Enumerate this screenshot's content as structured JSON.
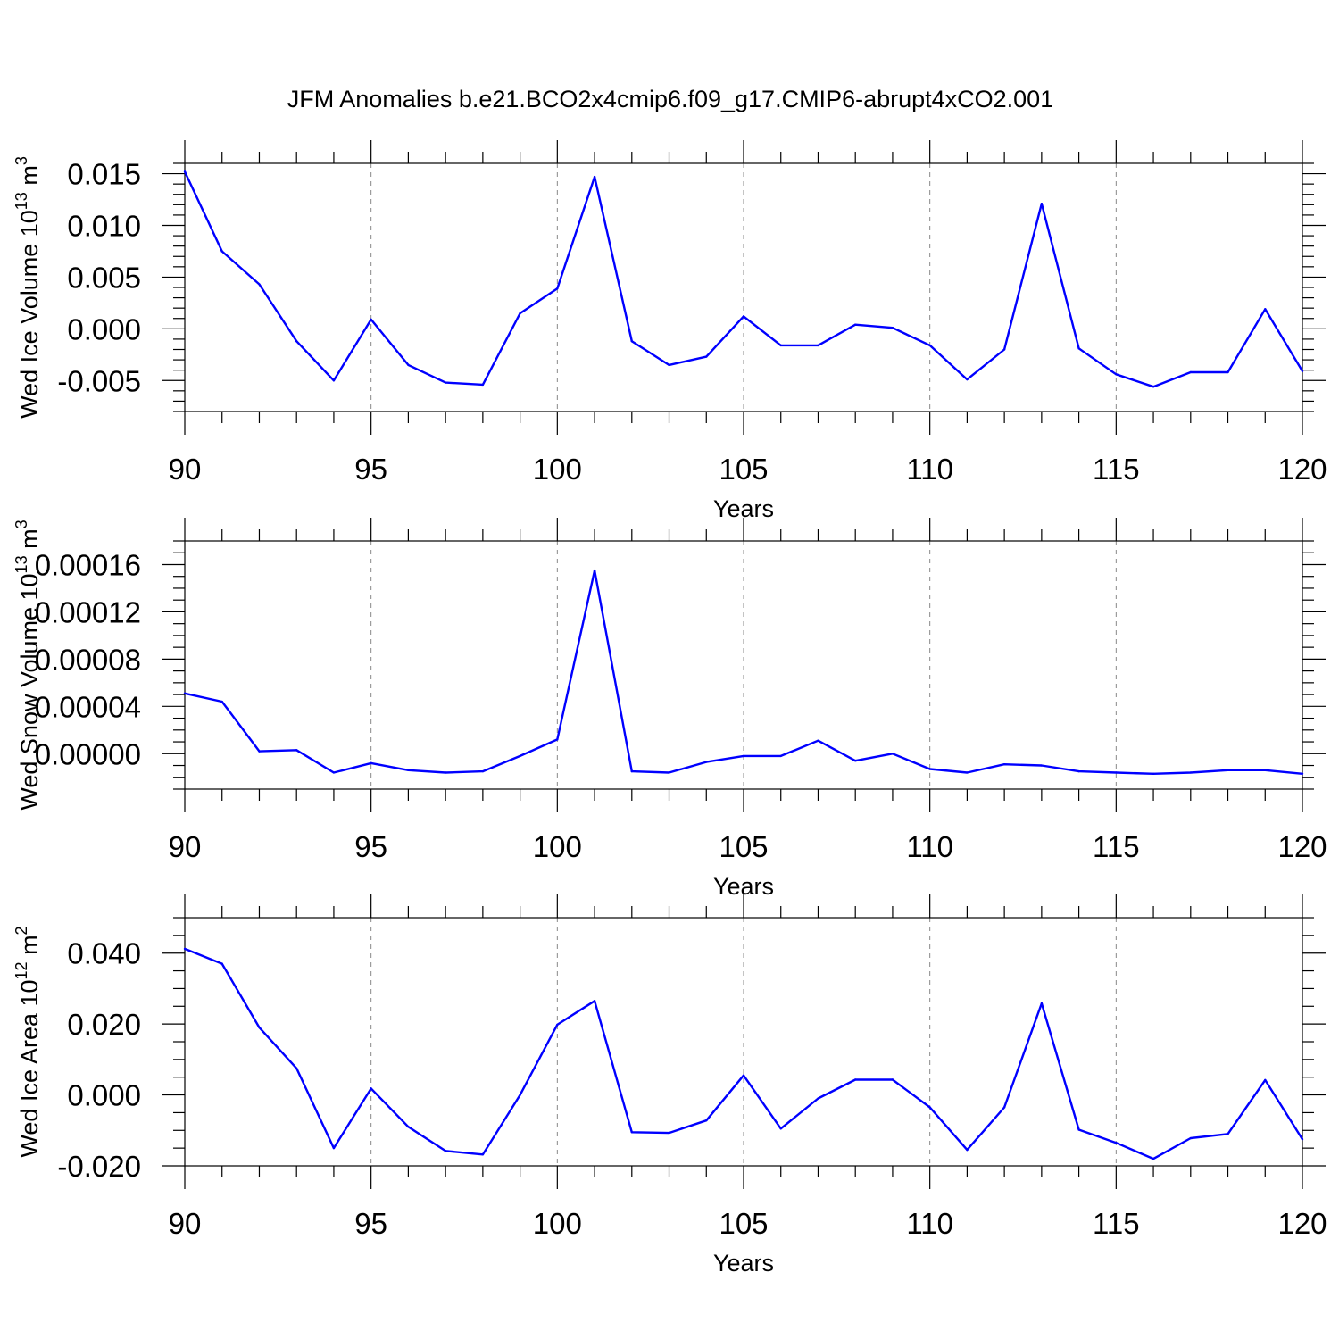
{
  "title": "JFM Anomalies b.e21.BCO2x4cmip6.f09_g17.CMIP6-abrupt4xCO2.001",
  "line_color": "#0000ff",
  "chart_data": [
    {
      "type": "line",
      "ylabel": "Wed Ice Volume 10",
      "ylabel_exp": "13",
      "ylabel_unit": " m",
      "ylabel_unit_exp": "3",
      "xlabel": "Years",
      "xlim": [
        90,
        120
      ],
      "ylim": [
        -0.008,
        0.016
      ],
      "x_ticks": [
        90,
        95,
        100,
        105,
        110,
        115,
        120
      ],
      "x_tick_labels": [
        "90",
        "95",
        "100",
        "105",
        "110",
        "115",
        "120"
      ],
      "y_ticks": [
        -0.005,
        0.0,
        0.005,
        0.01,
        0.015
      ],
      "y_tick_labels": [
        "-0.005",
        "0.000",
        "0.005",
        "0.010",
        "0.015"
      ],
      "y_minor_step": 0.001,
      "x": [
        90,
        91,
        92,
        93,
        94,
        95,
        96,
        97,
        98,
        99,
        100,
        101,
        102,
        103,
        104,
        105,
        106,
        107,
        108,
        109,
        110,
        111,
        112,
        113,
        114,
        115,
        116,
        117,
        118,
        119,
        120
      ],
      "values": [
        0.0152,
        0.0075,
        0.0043,
        -0.0012,
        -0.005,
        0.0009,
        -0.0035,
        -0.0052,
        -0.0054,
        0.0015,
        0.0039,
        0.0147,
        -0.0012,
        -0.0035,
        -0.0027,
        0.0012,
        -0.0016,
        -0.0016,
        0.0004,
        0.0001,
        -0.0016,
        -0.0049,
        -0.002,
        0.0121,
        -0.0019,
        -0.0044,
        -0.0056,
        -0.0042,
        -0.0042,
        0.0019,
        -0.0041
      ]
    },
    {
      "type": "line",
      "ylabel": "Wed Snow Volume 10",
      "ylabel_exp": "13",
      "ylabel_unit": " m",
      "ylabel_unit_exp": "3",
      "xlabel": "Years",
      "xlim": [
        90,
        120
      ],
      "ylim": [
        -3e-05,
        0.00018
      ],
      "x_ticks": [
        90,
        95,
        100,
        105,
        110,
        115,
        120
      ],
      "x_tick_labels": [
        "90",
        "95",
        "100",
        "105",
        "110",
        "115",
        "120"
      ],
      "y_ticks": [
        0.0,
        4e-05,
        8e-05,
        0.00012,
        0.00016
      ],
      "y_tick_labels": [
        "0.00000",
        "0.00004",
        "0.00008",
        "0.00012",
        "0.00016"
      ],
      "y_minor_step": 1e-05,
      "x": [
        90,
        91,
        92,
        93,
        94,
        95,
        96,
        97,
        98,
        99,
        100,
        101,
        102,
        103,
        104,
        105,
        106,
        107,
        108,
        109,
        110,
        111,
        112,
        113,
        114,
        115,
        116,
        117,
        118,
        119,
        120
      ],
      "values": [
        5.1e-05,
        4.4e-05,
        2e-06,
        3e-06,
        -1.6e-05,
        -8e-06,
        -1.4e-05,
        -1.6e-05,
        -1.5e-05,
        -2e-06,
        1.2e-05,
        0.000155,
        -1.5e-05,
        -1.6e-05,
        -7e-06,
        -2e-06,
        -2e-06,
        1.1e-05,
        -6e-06,
        0.0,
        -1.3e-05,
        -1.6e-05,
        -9e-06,
        -1e-05,
        -1.5e-05,
        -1.6e-05,
        -1.7e-05,
        -1.6e-05,
        -1.4e-05,
        -1.4e-05,
        -1.7e-05
      ]
    },
    {
      "type": "line",
      "ylabel": "Wed Ice Area 10",
      "ylabel_exp": "12",
      "ylabel_unit": " m",
      "ylabel_unit_exp": "2",
      "xlabel": "Years",
      "xlim": [
        90,
        120
      ],
      "ylim": [
        -0.02,
        0.05
      ],
      "x_ticks": [
        90,
        95,
        100,
        105,
        110,
        115,
        120
      ],
      "x_tick_labels": [
        "90",
        "95",
        "100",
        "105",
        "110",
        "115",
        "120"
      ],
      "y_ticks": [
        -0.02,
        0.0,
        0.02,
        0.04
      ],
      "y_tick_labels": [
        "-0.020",
        "0.000",
        "0.020",
        "0.040"
      ],
      "y_minor_step": 0.005,
      "x": [
        90,
        91,
        92,
        93,
        94,
        95,
        96,
        97,
        98,
        99,
        100,
        101,
        102,
        103,
        104,
        105,
        106,
        107,
        108,
        109,
        110,
        111,
        112,
        113,
        114,
        115,
        116,
        117,
        118,
        119,
        120
      ],
      "values": [
        0.0412,
        0.037,
        0.019,
        0.0075,
        -0.015,
        0.0018,
        -0.009,
        -0.0158,
        -0.0168,
        0.0,
        0.0198,
        0.0265,
        -0.0105,
        -0.0107,
        -0.0072,
        0.0055,
        -0.0095,
        -0.001,
        0.0043,
        0.0043,
        -0.0035,
        -0.0155,
        -0.0035,
        0.0258,
        -0.0098,
        -0.0135,
        -0.018,
        -0.0122,
        -0.011,
        0.0042,
        -0.0125
      ]
    }
  ]
}
